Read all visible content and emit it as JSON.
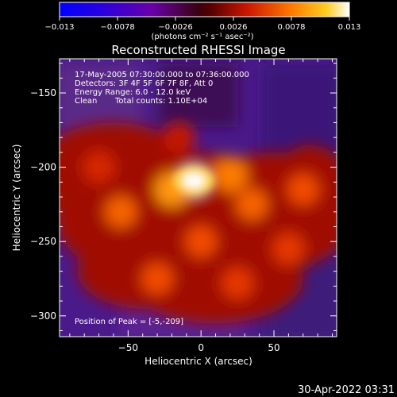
{
  "colorbar": {
    "ticks": [
      "-0.013",
      "-0.0078",
      "-0.0026",
      "0.0026",
      "0.0078",
      "0.013"
    ],
    "unit_label": "(photons cm⁻² s⁻¹ asec⁻²)"
  },
  "title": "Reconstructed RHESSI Image",
  "info": {
    "line1": "17-May-2005 07:30:00.000 to 07:36:00.000",
    "line2": "Detectors: 3F 4F 5F 6F 7F 8F, Att 0",
    "line3": "Energy Range: 6.0 - 12.0 keV",
    "line4_a": "Clean",
    "line4_b": "Total counts: 1.10E+04"
  },
  "peak_label": "Position of Peak = [-5,-209]",
  "timestamp": "30-Apr-2022 03:31",
  "chart_data": {
    "type": "heatmap",
    "title": "Reconstructed RHESSI Image",
    "xlabel": "Heliocentric X (arcsec)",
    "ylabel": "Heliocentric Y (arcsec)",
    "xlim": [
      -97,
      93
    ],
    "ylim": [
      -314,
      -127
    ],
    "x_ticks": [
      -50,
      0,
      50
    ],
    "y_ticks": [
      -300,
      -250,
      -200,
      -150
    ],
    "x_tick_labels": [
      "−50",
      "0",
      "50"
    ],
    "y_tick_labels": [
      "−300",
      "−250",
      "−200",
      "−150"
    ],
    "colorbar_range": [
      -0.013,
      0.013
    ],
    "peak": [
      -5,
      -209
    ],
    "regions": [
      {
        "x": -5,
        "y": -209,
        "value": 0.0125
      },
      {
        "x": -20,
        "y": -215,
        "value": 0.009
      },
      {
        "x": 20,
        "y": -205,
        "value": 0.008
      },
      {
        "x": -55,
        "y": -230,
        "value": 0.007
      },
      {
        "x": 35,
        "y": -225,
        "value": 0.007
      },
      {
        "x": 70,
        "y": -215,
        "value": 0.006
      },
      {
        "x": 0,
        "y": -250,
        "value": 0.006
      },
      {
        "x": -30,
        "y": -275,
        "value": 0.006
      },
      {
        "x": 25,
        "y": -278,
        "value": 0.005
      },
      {
        "x": -70,
        "y": -200,
        "value": 0.004
      },
      {
        "x": 60,
        "y": -255,
        "value": 0.005
      },
      {
        "x": -15,
        "y": -180,
        "value": 0.003
      }
    ]
  }
}
